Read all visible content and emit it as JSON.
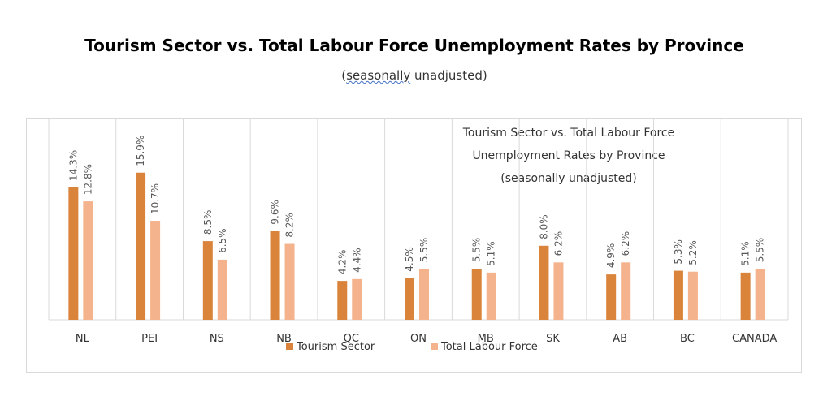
{
  "header": {
    "title": "Tourism Sector vs. Total Labour Force Unemployment Rates by Province",
    "subtitle_underlined": "seasonally",
    "subtitle_rest": " unadjusted)",
    "subtitle_open": "("
  },
  "chart_data": {
    "type": "bar",
    "title_lines": [
      "Tourism Sector vs. Total Labour Force",
      "Unemployment Rates by Province",
      "(seasonally unadjusted)"
    ],
    "categories": [
      "NL",
      "PEI",
      "NS",
      "NB",
      "QC",
      "ON",
      "MB",
      "SK",
      "AB",
      "BC",
      "CANADA"
    ],
    "series": [
      {
        "name": "Tourism Sector",
        "color": "#d9833b",
        "values": [
          14.3,
          15.9,
          8.5,
          9.6,
          4.2,
          4.5,
          5.5,
          8.0,
          4.9,
          5.3,
          5.1
        ],
        "labels": [
          "14.3%",
          "15.9%",
          "8.5%",
          "9.6%",
          "4.2%",
          "4.5%",
          "5.5%",
          "8.0%",
          "4.9%",
          "5.3%",
          "5.1%"
        ]
      },
      {
        "name": "Total Labour Force",
        "color": "#f5b38d",
        "values": [
          12.8,
          10.7,
          6.5,
          8.2,
          4.4,
          5.5,
          5.1,
          6.2,
          6.2,
          5.2,
          5.5
        ],
        "labels": [
          "12.8%",
          "10.7%",
          "6.5%",
          "8.2%",
          "4.4%",
          "5.5%",
          "5.1%",
          "6.2%",
          "6.2%",
          "5.2%",
          "5.5%"
        ]
      }
    ],
    "ylim": [
      0,
      20
    ],
    "grid": "vertical category separators",
    "legend": "bottom",
    "data_labels": "rotated, above bars"
  }
}
